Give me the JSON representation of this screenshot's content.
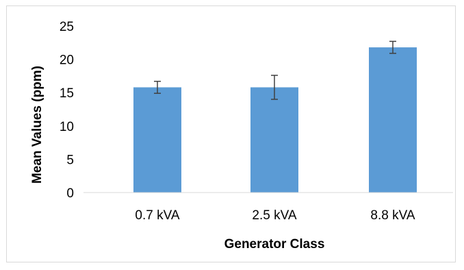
{
  "chart_data": {
    "type": "bar",
    "title": "",
    "xlabel": "Generator Class",
    "ylabel": "Mean Values (ppm)",
    "categories": [
      "0.7 kVA",
      "2.5 kVA",
      "8.8 kVA"
    ],
    "series": [
      {
        "values": [
          15.8,
          15.8,
          21.8
        ],
        "error_low": [
          14.9,
          14.0,
          20.9
        ],
        "error_high": [
          16.7,
          17.6,
          22.7
        ]
      }
    ],
    "ylim": [
      0,
      25
    ],
    "yticks": [
      "0",
      "5",
      "10",
      "15",
      "20",
      "25"
    ],
    "grid": false,
    "legend": "none",
    "colors": {
      "bar": "#5b9bd5",
      "error_bar": "#404040",
      "axis": "#d9d9d9"
    }
  }
}
